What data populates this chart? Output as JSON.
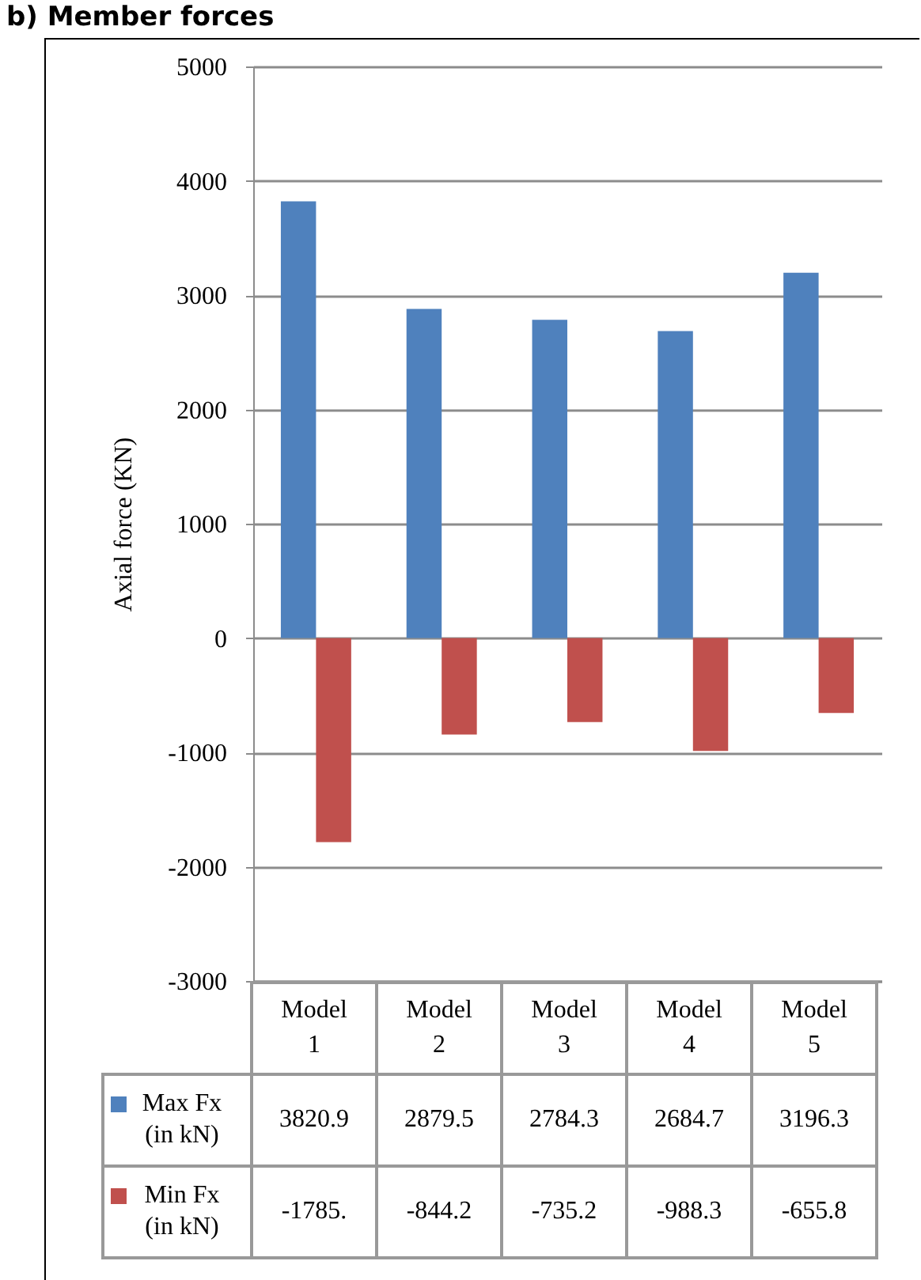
{
  "chart_data": {
    "type": "bar",
    "title": "b) Member forces",
    "ylabel": "Axial force (KN)",
    "categories": [
      "Model 1",
      "Model 2",
      "Model 3",
      "Model 4",
      "Model 5"
    ],
    "series": [
      {
        "name": "Max Fx (in kN)",
        "color": "#4f81bd",
        "values": [
          3820.9,
          2879.5,
          2784.3,
          2684.7,
          3196.3
        ],
        "value_labels": [
          "3820.9",
          "2879.5",
          "2784.3",
          "2684.7",
          "3196.3"
        ]
      },
      {
        "name": "Min Fx (in kN)",
        "color": "#c0504d",
        "values": [
          -1785,
          -844.2,
          -735.2,
          -988.3,
          -655.8
        ],
        "value_labels": [
          "-1785.",
          "-844.2",
          "-735.2",
          "-988.3",
          "-655.8"
        ]
      }
    ],
    "ylim": [
      -3000,
      5000
    ],
    "yticks": [
      -3000,
      -2000,
      -1000,
      0,
      1000,
      2000,
      3000,
      4000,
      5000
    ],
    "grid": "y",
    "legend": "bottom"
  }
}
